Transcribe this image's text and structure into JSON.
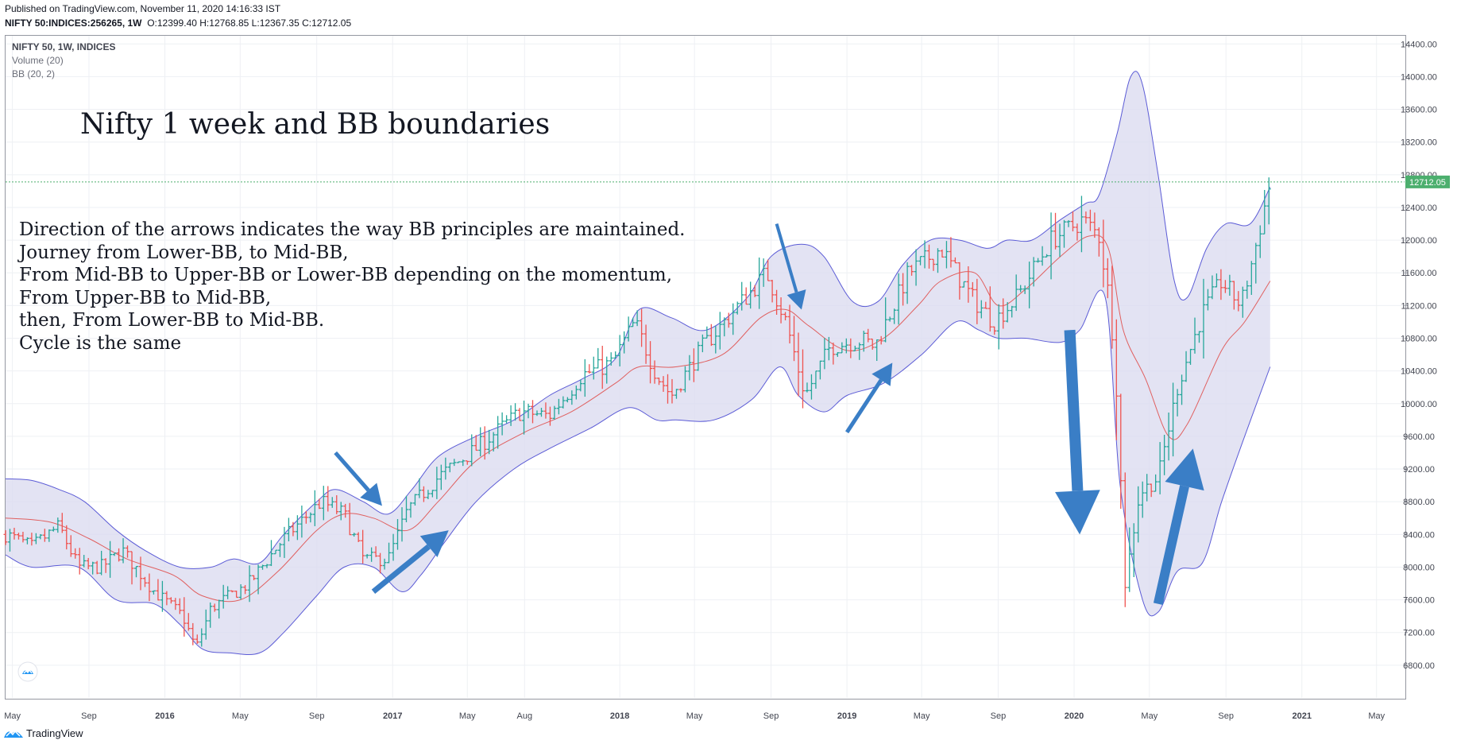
{
  "header": {
    "published": "Published on TradingView.com, November 11, 2020 14:16:33 IST",
    "symbol": "NIFTY 50:INDICES:256265, 1W",
    "o_label": "O:",
    "o_val": "12399.40",
    "h_label": "H:",
    "h_val": "12768.85",
    "l_label": "L:",
    "l_val": "12367.35",
    "c_label": "C:",
    "c_val": "12712.05"
  },
  "legend": {
    "symbol": "NIFTY 50, 1W, INDICES",
    "volume": "Volume (20)",
    "bb": "BB (20, 2)"
  },
  "annotations": {
    "title": "Nifty 1 week and BB boundaries",
    "lines": [
      "Direction of the arrows indicates the way BB principles are maintained.",
      "Journey from Lower-BB, to Mid-BB,",
      "From Mid-BB to Upper-BB or Lower-BB depending on the momentum,",
      "From Upper-BB to Mid-BB,",
      "then, From Lower-BB to Mid-BB.",
      "Cycle is the same"
    ]
  },
  "footer": {
    "brand": "TradingView"
  },
  "colors": {
    "up": "#26a69a",
    "down": "#ef5350",
    "band_fill": "#dcdcf0",
    "band_line": "#5b5bd6",
    "mid_line": "#e06060",
    "arrow": "#3a7ec6",
    "last_price_bg": "#4caf6e",
    "grid": "#eef0f4"
  },
  "chart_data": {
    "type": "ohlc",
    "title": "Nifty 1 week and BB boundaries",
    "symbol": "NIFTY 50, 1W, INDICES",
    "x_range": [
      "2015-04-20",
      "2021-06-15"
    ],
    "ylim": [
      6400,
      14500
    ],
    "y_ticks": [
      6800,
      7200,
      7600,
      8000,
      8400,
      8800,
      9200,
      9600,
      10000,
      10400,
      10800,
      11200,
      11600,
      12000,
      12400,
      12800,
      13200,
      13600,
      14000,
      14400
    ],
    "y_tick_labels": [
      "6800.00",
      "7200.00",
      "7600.00",
      "8000.00",
      "8400.00",
      "8800.00",
      "9200.00",
      "9600.00",
      "10000.00",
      "10400.00",
      "10800.00",
      "11200.00",
      "11600.00",
      "12000.00",
      "12400.00",
      "12800.00",
      "13200.00",
      "13600.00",
      "14000.00",
      "14400.00"
    ],
    "x_ticks": [
      {
        "date": "2015-05-01",
        "label": "May",
        "bold": false
      },
      {
        "date": "2015-09-01",
        "label": "Sep",
        "bold": false
      },
      {
        "date": "2016-01-01",
        "label": "2016",
        "bold": true
      },
      {
        "date": "2016-05-01",
        "label": "May",
        "bold": false
      },
      {
        "date": "2016-09-01",
        "label": "Sep",
        "bold": false
      },
      {
        "date": "2017-01-01",
        "label": "2017",
        "bold": true
      },
      {
        "date": "2017-05-01",
        "label": "May",
        "bold": false
      },
      {
        "date": "2017-08-01",
        "label": "Aug",
        "bold": false
      },
      {
        "date": "2018-01-01",
        "label": "2018",
        "bold": true
      },
      {
        "date": "2018-05-01",
        "label": "May",
        "bold": false
      },
      {
        "date": "2018-09-01",
        "label": "Sep",
        "bold": false
      },
      {
        "date": "2019-01-01",
        "label": "2019",
        "bold": true
      },
      {
        "date": "2019-05-01",
        "label": "May",
        "bold": false
      },
      {
        "date": "2019-09-01",
        "label": "Sep",
        "bold": false
      },
      {
        "date": "2020-01-01",
        "label": "2020",
        "bold": true
      },
      {
        "date": "2020-05-01",
        "label": "May",
        "bold": false
      },
      {
        "date": "2020-09-01",
        "label": "Sep",
        "bold": false
      },
      {
        "date": "2021-01-01",
        "label": "2021",
        "bold": true
      },
      {
        "date": "2021-05-01",
        "label": "May",
        "bold": false
      }
    ],
    "last_price": 12712.05,
    "last_price_label": "12712.05",
    "close_path": [
      [
        "2015-04-20",
        8400
      ],
      [
        "2015-06-01",
        8250
      ],
      [
        "2015-07-15",
        8500
      ],
      [
        "2015-08-15",
        8000
      ],
      [
        "2015-09-20",
        8000
      ],
      [
        "2015-10-25",
        8200
      ],
      [
        "2015-12-15",
        7700
      ],
      [
        "2016-01-30",
        7400
      ],
      [
        "2016-02-20",
        7000
      ],
      [
        "2016-03-15",
        7500
      ],
      [
        "2016-05-15",
        7800
      ],
      [
        "2016-07-10",
        8350
      ],
      [
        "2016-09-08",
        8800
      ],
      [
        "2016-10-15",
        8650
      ],
      [
        "2016-11-15",
        8100
      ],
      [
        "2016-12-25",
        8100
      ],
      [
        "2017-01-25",
        8700
      ],
      [
        "2017-03-15",
        9100
      ],
      [
        "2017-05-15",
        9450
      ],
      [
        "2017-07-25",
        9900
      ],
      [
        "2017-09-10",
        9850
      ],
      [
        "2017-11-01",
        10350
      ],
      [
        "2017-12-20",
        10500
      ],
      [
        "2018-01-25",
        11000
      ],
      [
        "2018-03-01",
        10350
      ],
      [
        "2018-03-25",
        10100
      ],
      [
        "2018-05-15",
        10700
      ],
      [
        "2018-08-25",
        11600
      ],
      [
        "2018-09-25",
        11000
      ],
      [
        "2018-10-26",
        10100
      ],
      [
        "2018-12-05",
        10700
      ],
      [
        "2019-01-25",
        10780
      ],
      [
        "2019-02-15",
        10700
      ],
      [
        "2019-04-10",
        11600
      ],
      [
        "2019-06-01",
        11900
      ],
      [
        "2019-07-20",
        11300
      ],
      [
        "2019-08-25",
        11000
      ],
      [
        "2019-10-01",
        11300
      ],
      [
        "2019-11-25",
        12000
      ],
      [
        "2020-01-15",
        12250
      ],
      [
        "2020-02-10",
        12050
      ],
      [
        "2020-02-28",
        11200
      ],
      [
        "2020-03-10",
        10100
      ],
      [
        "2020-03-23",
        7800
      ],
      [
        "2020-04-15",
        8900
      ],
      [
        "2020-05-15",
        9100
      ],
      [
        "2020-06-15",
        10200
      ],
      [
        "2020-07-25",
        11100
      ],
      [
        "2020-08-25",
        11500
      ],
      [
        "2020-09-25",
        11200
      ],
      [
        "2020-10-15",
        11800
      ],
      [
        "2020-11-11",
        12712
      ]
    ],
    "bb_upper": [
      [
        "2015-04-20",
        9080
      ],
      [
        "2015-06-01",
        9060
      ],
      [
        "2015-07-15",
        8950
      ],
      [
        "2015-08-25",
        8800
      ],
      [
        "2015-10-15",
        8450
      ],
      [
        "2015-12-01",
        8200
      ],
      [
        "2016-01-25",
        8000
      ],
      [
        "2016-03-15",
        8000
      ],
      [
        "2016-04-20",
        8100
      ],
      [
        "2016-06-01",
        8050
      ],
      [
        "2016-07-10",
        8400
      ],
      [
        "2016-09-01",
        8800
      ],
      [
        "2016-10-01",
        8950
      ],
      [
        "2016-11-15",
        8800
      ],
      [
        "2016-12-25",
        8650
      ],
      [
        "2017-02-01",
        8950
      ],
      [
        "2017-03-15",
        9350
      ],
      [
        "2017-05-15",
        9600
      ],
      [
        "2017-07-15",
        9800
      ],
      [
        "2017-09-10",
        10100
      ],
      [
        "2017-11-01",
        10300
      ],
      [
        "2017-12-25",
        10550
      ],
      [
        "2018-02-01",
        11150
      ],
      [
        "2018-03-25",
        11050
      ],
      [
        "2018-05-20",
        10900
      ],
      [
        "2018-07-25",
        11300
      ],
      [
        "2018-09-01",
        11800
      ],
      [
        "2018-10-20",
        11950
      ],
      [
        "2018-11-25",
        11800
      ],
      [
        "2019-01-10",
        11250
      ],
      [
        "2019-02-20",
        11250
      ],
      [
        "2019-04-01",
        11700
      ],
      [
        "2019-05-15",
        12000
      ],
      [
        "2019-07-01",
        12000
      ],
      [
        "2019-08-15",
        11900
      ],
      [
        "2019-09-15",
        12000
      ],
      [
        "2019-10-25",
        12000
      ],
      [
        "2019-12-10",
        12250
      ],
      [
        "2020-01-20",
        12450
      ],
      [
        "2020-02-10",
        12550
      ],
      [
        "2020-03-10",
        13300
      ],
      [
        "2020-04-01",
        14000
      ],
      [
        "2020-04-20",
        13900
      ],
      [
        "2020-05-15",
        12800
      ],
      [
        "2020-06-10",
        11500
      ],
      [
        "2020-07-01",
        11300
      ],
      [
        "2020-08-01",
        11900
      ],
      [
        "2020-09-01",
        12200
      ],
      [
        "2020-10-10",
        12200
      ],
      [
        "2020-11-11",
        12650
      ]
    ],
    "bb_mid": [
      [
        "2015-04-20",
        8600
      ],
      [
        "2015-07-01",
        8550
      ],
      [
        "2015-09-01",
        8350
      ],
      [
        "2015-11-01",
        8100
      ],
      [
        "2016-01-15",
        7900
      ],
      [
        "2016-03-01",
        7650
      ],
      [
        "2016-05-01",
        7600
      ],
      [
        "2016-07-01",
        7950
      ],
      [
        "2016-09-01",
        8450
      ],
      [
        "2016-10-15",
        8650
      ],
      [
        "2016-12-01",
        8600
      ],
      [
        "2017-01-25",
        8450
      ],
      [
        "2017-03-15",
        8800
      ],
      [
        "2017-05-15",
        9300
      ],
      [
        "2017-08-01",
        9650
      ],
      [
        "2017-10-15",
        9900
      ],
      [
        "2017-12-25",
        10250
      ],
      [
        "2018-02-01",
        10450
      ],
      [
        "2018-04-01",
        10450
      ],
      [
        "2018-06-15",
        10600
      ],
      [
        "2018-08-15",
        11050
      ],
      [
        "2018-09-25",
        11150
      ],
      [
        "2018-11-01",
        10950
      ],
      [
        "2019-01-01",
        10650
      ],
      [
        "2019-03-01",
        10800
      ],
      [
        "2019-04-25",
        11200
      ],
      [
        "2019-06-01",
        11500
      ],
      [
        "2019-07-25",
        11600
      ],
      [
        "2019-09-01",
        11200
      ],
      [
        "2019-10-15",
        11400
      ],
      [
        "2019-12-10",
        11800
      ],
      [
        "2020-01-25",
        12050
      ],
      [
        "2020-02-25",
        11900
      ],
      [
        "2020-03-20",
        10900
      ],
      [
        "2020-04-25",
        10300
      ],
      [
        "2020-06-01",
        9600
      ],
      [
        "2020-07-01",
        9750
      ],
      [
        "2020-08-25",
        10650
      ],
      [
        "2020-10-01",
        11000
      ],
      [
        "2020-11-11",
        11500
      ]
    ],
    "bb_lower": [
      [
        "2015-04-20",
        8150
      ],
      [
        "2015-06-01",
        8000
      ],
      [
        "2015-08-15",
        8000
      ],
      [
        "2015-10-15",
        7600
      ],
      [
        "2015-12-15",
        7550
      ],
      [
        "2016-01-25",
        7300
      ],
      [
        "2016-03-01",
        7000
      ],
      [
        "2016-04-15",
        6950
      ],
      [
        "2016-06-01",
        6950
      ],
      [
        "2016-07-10",
        7200
      ],
      [
        "2016-09-01",
        7650
      ],
      [
        "2016-10-15",
        8000
      ],
      [
        "2016-12-01",
        8000
      ],
      [
        "2017-01-15",
        7700
      ],
      [
        "2017-02-15",
        7900
      ],
      [
        "2017-03-25",
        8300
      ],
      [
        "2017-05-15",
        8800
      ],
      [
        "2017-07-15",
        9200
      ],
      [
        "2017-09-10",
        9450
      ],
      [
        "2017-11-15",
        9700
      ],
      [
        "2018-01-15",
        9950
      ],
      [
        "2018-03-01",
        9800
      ],
      [
        "2018-04-01",
        9800
      ],
      [
        "2018-06-01",
        9800
      ],
      [
        "2018-08-01",
        10050
      ],
      [
        "2018-09-15",
        10450
      ],
      [
        "2018-10-15",
        10100
      ],
      [
        "2018-11-25",
        9900
      ],
      [
        "2019-01-01",
        10100
      ],
      [
        "2019-03-01",
        10250
      ],
      [
        "2019-05-01",
        10600
      ],
      [
        "2019-06-25",
        11000
      ],
      [
        "2019-08-01",
        10900
      ],
      [
        "2019-09-01",
        10800
      ],
      [
        "2019-10-15",
        10800
      ],
      [
        "2019-12-10",
        10750
      ],
      [
        "2020-01-10",
        10900
      ],
      [
        "2020-02-20",
        11300
      ],
      [
        "2020-03-15",
        9000
      ],
      [
        "2020-04-20",
        7600
      ],
      [
        "2020-05-15",
        7450
      ],
      [
        "2020-06-15",
        7950
      ],
      [
        "2020-07-25",
        8050
      ],
      [
        "2020-08-25",
        8800
      ],
      [
        "2020-10-01",
        9600
      ],
      [
        "2020-11-11",
        10450
      ]
    ],
    "arrows": [
      {
        "from": [
          "2016-10-01",
          9400
        ],
        "to": [
          "2016-12-15",
          8750
        ],
        "width": 5
      },
      {
        "from": [
          "2016-12-01",
          7700
        ],
        "to": [
          "2017-04-01",
          8450
        ],
        "width": 7
      },
      {
        "from": [
          "2018-09-10",
          12200
        ],
        "to": [
          "2018-10-20",
          11150
        ],
        "width": 4
      },
      {
        "from": [
          "2019-01-01",
          9650
        ],
        "to": [
          "2019-03-15",
          10500
        ],
        "width": 5
      },
      {
        "from": [
          "2019-12-25",
          10900
        ],
        "to": [
          "2020-01-10",
          8400
        ],
        "width": 14
      },
      {
        "from": [
          "2020-05-15",
          7550
        ],
        "to": [
          "2020-07-10",
          9450
        ],
        "width": 12
      }
    ]
  }
}
